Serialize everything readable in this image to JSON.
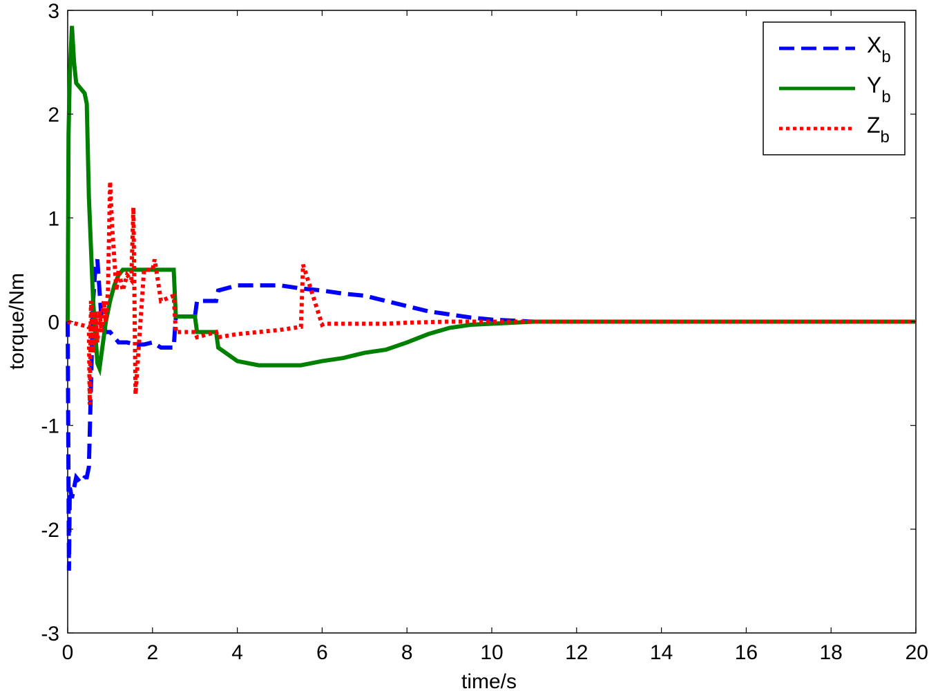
{
  "chart_data": {
    "type": "line",
    "title": "",
    "xlabel": "time/s",
    "ylabel": "torque/Nm",
    "xlim": [
      0,
      20
    ],
    "ylim": [
      -3,
      3
    ],
    "xticks": [
      0,
      2,
      4,
      6,
      8,
      10,
      12,
      14,
      16,
      18,
      20
    ],
    "yticks": [
      -3,
      -2,
      -1,
      0,
      1,
      2,
      3
    ],
    "grid": false,
    "legend_position": "top-right",
    "series": [
      {
        "name": "X",
        "name_sub": "b",
        "color": "#0000ff",
        "style": "dashed",
        "x": [
          0,
          0.03,
          0.05,
          0.1,
          0.15,
          0.2,
          0.3,
          0.4,
          0.45,
          0.5,
          0.55,
          0.6,
          0.65,
          0.7,
          0.75,
          0.8,
          0.9,
          1.0,
          1.1,
          1.2,
          1.4,
          1.6,
          1.8,
          2.0,
          2.2,
          2.5,
          2.55,
          3.0,
          3.05,
          3.5,
          3.55,
          4.0,
          4.5,
          5.0,
          5.5,
          6.0,
          6.5,
          7.0,
          7.5,
          8.0,
          8.5,
          9.0,
          9.5,
          10.0,
          10.5,
          11.0,
          12.0,
          14.0,
          16.0,
          18.0,
          20.0
        ],
        "y": [
          0,
          -2.4,
          -1.6,
          -1.7,
          -1.6,
          -1.5,
          -1.55,
          -1.5,
          -1.5,
          -1.4,
          -0.6,
          0.2,
          0.5,
          0.6,
          0.3,
          0.0,
          -0.1,
          -0.1,
          -0.15,
          -0.2,
          -0.2,
          -0.22,
          -0.22,
          -0.2,
          -0.25,
          -0.25,
          0.05,
          0.05,
          0.2,
          0.2,
          0.3,
          0.35,
          0.35,
          0.35,
          0.32,
          0.3,
          0.27,
          0.25,
          0.2,
          0.15,
          0.1,
          0.07,
          0.04,
          0.02,
          0.01,
          0.0,
          0.0,
          0.0,
          0.0,
          0.0,
          0.0
        ]
      },
      {
        "name": "Y",
        "name_sub": "b",
        "color": "#008000",
        "style": "solid",
        "x": [
          0,
          0.02,
          0.05,
          0.1,
          0.15,
          0.2,
          0.3,
          0.4,
          0.45,
          0.5,
          0.6,
          0.7,
          0.75,
          0.8,
          0.9,
          1.0,
          1.1,
          1.2,
          1.3,
          1.4,
          1.6,
          1.8,
          2.0,
          2.2,
          2.5,
          2.55,
          3.0,
          3.05,
          3.5,
          3.55,
          4.0,
          4.5,
          5.0,
          5.5,
          6.0,
          6.5,
          7.0,
          7.5,
          8.0,
          8.5,
          9.0,
          9.5,
          10.0,
          10.5,
          11.0,
          12.0,
          14.0,
          16.0,
          18.0,
          20.0
        ],
        "y": [
          0,
          1.8,
          2.4,
          2.85,
          2.5,
          2.3,
          2.25,
          2.2,
          2.1,
          1.2,
          0.2,
          -0.4,
          -0.45,
          -0.3,
          0.0,
          0.2,
          0.35,
          0.45,
          0.5,
          0.5,
          0.5,
          0.5,
          0.5,
          0.5,
          0.5,
          0.05,
          0.05,
          -0.1,
          -0.1,
          -0.25,
          -0.38,
          -0.42,
          -0.42,
          -0.42,
          -0.38,
          -0.35,
          -0.3,
          -0.27,
          -0.2,
          -0.12,
          -0.06,
          -0.03,
          -0.02,
          -0.01,
          0.0,
          0.0,
          0.0,
          0.0,
          0.0,
          0.0
        ]
      },
      {
        "name": "Z",
        "name_sub": "b",
        "color": "#ff0000",
        "style": "dotted",
        "x": [
          0,
          0.5,
          0.52,
          0.55,
          0.6,
          0.65,
          0.7,
          0.75,
          0.8,
          0.85,
          0.9,
          0.95,
          1.0,
          1.05,
          1.1,
          1.15,
          1.2,
          1.3,
          1.4,
          1.5,
          1.55,
          1.6,
          1.8,
          2.0,
          2.05,
          2.2,
          2.5,
          2.55,
          3.0,
          3.05,
          3.5,
          3.55,
          4.0,
          4.5,
          5.0,
          5.5,
          5.55,
          6.0,
          6.05,
          6.5,
          7.0,
          7.5,
          8.0,
          9.0,
          10.0,
          11.0,
          12.0,
          14.0,
          16.0,
          18.0,
          20.0
        ],
        "y": [
          0,
          -0.05,
          -0.8,
          0.2,
          -0.3,
          0.1,
          -0.2,
          0.1,
          -0.1,
          0.2,
          0.0,
          0.3,
          1.35,
          0.9,
          0.6,
          0.3,
          0.5,
          0.3,
          0.45,
          0.4,
          1.1,
          -0.7,
          0.5,
          0.5,
          0.6,
          0.2,
          0.25,
          -0.1,
          -0.1,
          -0.15,
          -0.1,
          -0.15,
          -0.12,
          -0.1,
          -0.08,
          -0.05,
          0.55,
          -0.03,
          -0.02,
          -0.02,
          -0.02,
          -0.02,
          -0.01,
          0.0,
          0.0,
          0.0,
          0.0,
          0.0,
          0.0,
          0.0,
          0.0
        ]
      }
    ]
  }
}
